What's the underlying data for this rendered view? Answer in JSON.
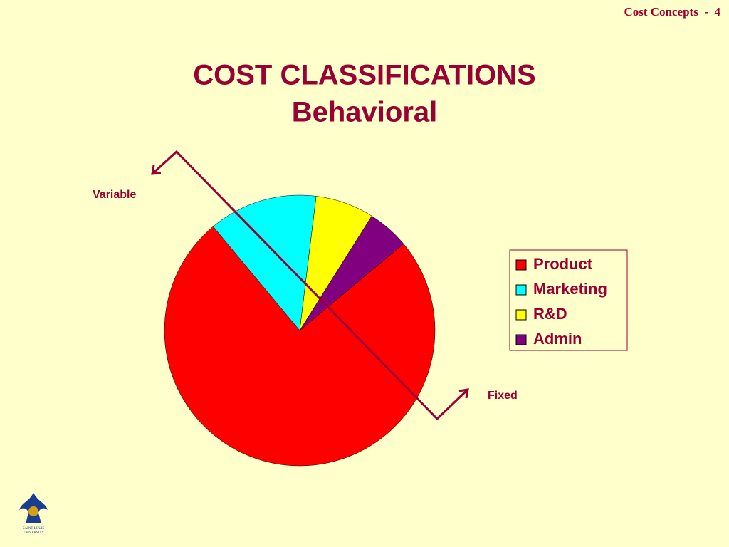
{
  "header": "Cost Concepts  -  4",
  "chart_data": {
    "type": "pie",
    "title": "COST CLASSIFICATIONS",
    "subtitle": "Behavioral",
    "categories": [
      "Product",
      "Marketing",
      "R&D",
      "Admin"
    ],
    "values": [
      75,
      13,
      7,
      5
    ],
    "colors": [
      "#ff0000",
      "#00ffff",
      "#ffff00",
      "#800080"
    ],
    "annotations": [
      "Variable",
      "Fixed"
    ]
  },
  "logo": {
    "text": [
      "SAINT LOUIS",
      "UNIVERSITY"
    ]
  }
}
